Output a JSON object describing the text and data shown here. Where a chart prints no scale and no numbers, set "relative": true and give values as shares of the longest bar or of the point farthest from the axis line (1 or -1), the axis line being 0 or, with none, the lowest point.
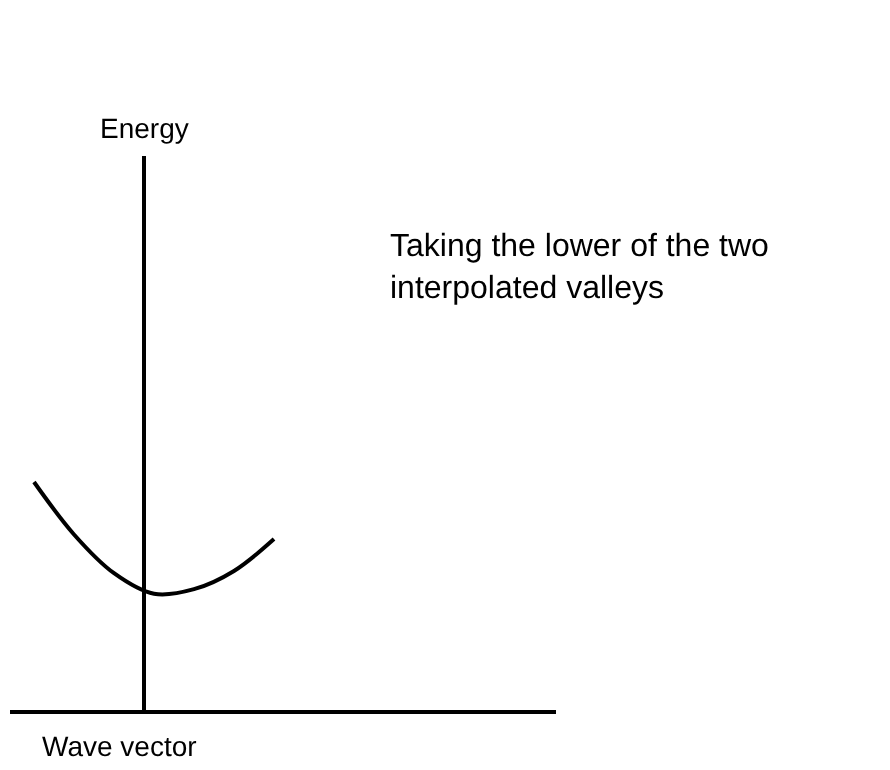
{
  "chart_data": {
    "type": "line",
    "relative": true,
    "xlabel": "Wave vector",
    "categories": [
      null,
      null,
      null,
      null,
      null,
      null,
      null
    ],
    "series": [
      {
        "color": "#000000",
        "values": [
          1,
          0.77,
          0.6,
          0.51,
          0.53,
          0.61,
          0.75
        ]
      }
    ],
    "annotations": [
      "Energy",
      "Taking the lower of the two interpolated valleys"
    ],
    "grid": false,
    "marker": "none",
    "line_style": "solid"
  }
}
